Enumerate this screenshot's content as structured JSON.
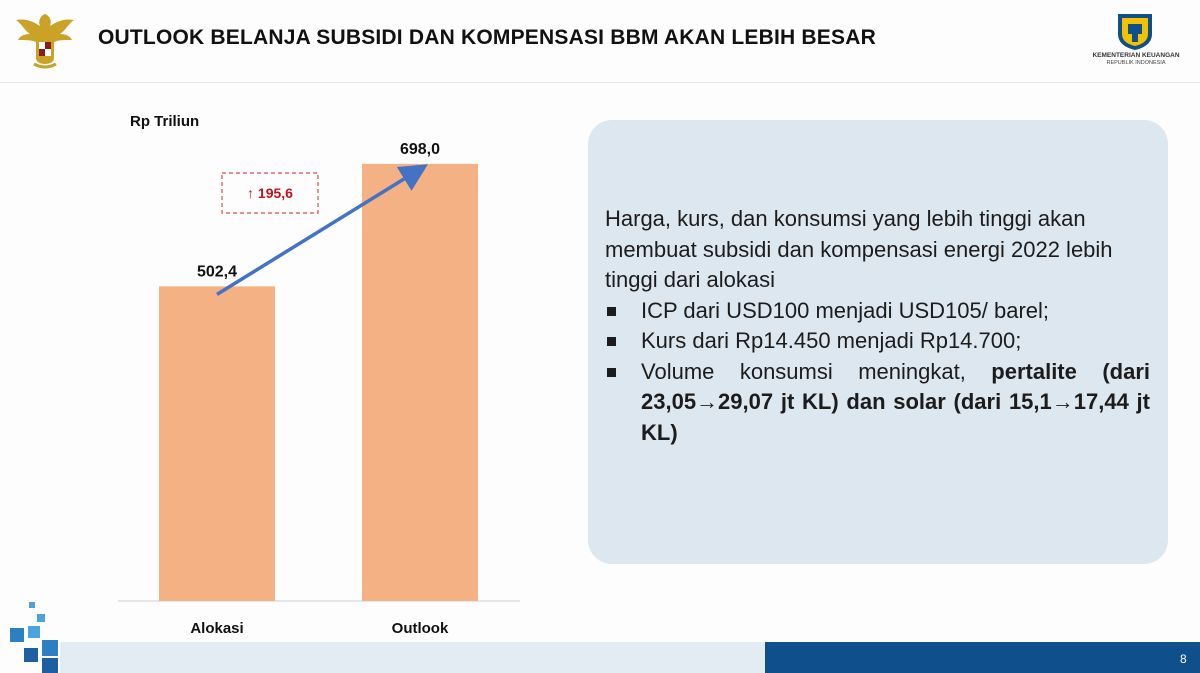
{
  "header": {
    "title": "OUTLOOK BELANJA SUBSIDI DAN KOMPENSASI BBM AKAN LEBIH BESAR",
    "ministry_name": "KEMENTERIAN KEUANGAN",
    "ministry_sub": "REPUBLIK INDONESIA"
  },
  "chart_data": {
    "type": "bar",
    "unit_label": "Rp Triliun",
    "categories": [
      "Alokasi",
      "Outlook"
    ],
    "values": [
      502.4,
      698.0
    ],
    "value_labels": [
      "502,4",
      "698,0"
    ],
    "delta_label": "195,6",
    "delta_symbol": "↑",
    "ylim": [
      0,
      800
    ],
    "grid": false,
    "bar_color": "#f4b183",
    "arrow_color": "#4472c4",
    "delta_color": "#c0121e"
  },
  "info": {
    "intro": "Harga, kurs, dan konsumsi yang lebih tinggi akan membuat subsidi dan kompensasi energi 2022 lebih tinggi dari alokasi",
    "bullet_1": "ICP dari USD100 menjadi USD105/ barel;",
    "bullet_2": "Kurs dari Rp14.450 menjadi Rp14.700;",
    "bullet_3_prefix": "Volume konsumsi meningkat, ",
    "bullet_3_bold": "pertalite (dari 23,05→29,07 jt KL) dan solar (dari 15,1→17,44 jt KL)",
    "box_color": "#dde7ef"
  },
  "footer": {
    "page_number": "8",
    "accent_color": "#0f4f8c",
    "light_color": "#e3ebf3"
  }
}
